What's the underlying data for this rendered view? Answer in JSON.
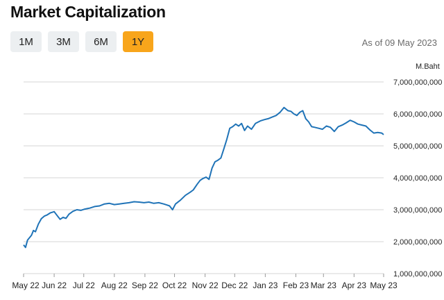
{
  "header": {
    "title": "Market Capitalization",
    "as_of": "As of 09 May 2023"
  },
  "periods": [
    {
      "label": "1M",
      "active": false
    },
    {
      "label": "3M",
      "active": false
    },
    {
      "label": "6M",
      "active": false
    },
    {
      "label": "1Y",
      "active": true
    }
  ],
  "colors": {
    "line": "#1f73b7",
    "active_button": "#f8a51b",
    "grid": "#d6d6d6"
  },
  "chart_data": {
    "type": "line",
    "title": "",
    "ylabel": "M.Baht",
    "ylim": [
      1000000000,
      7000000000
    ],
    "y_ticks": [
      {
        "value": 7000000000,
        "label": "7,000,000,000"
      },
      {
        "value": 6000000000,
        "label": "6,000,000,000"
      },
      {
        "value": 5000000000,
        "label": "5,000,000,000"
      },
      {
        "value": 4000000000,
        "label": "4,000,000,000"
      },
      {
        "value": 3000000000,
        "label": "3,000,000,000"
      },
      {
        "value": 2000000000,
        "label": "2,000,000,000"
      },
      {
        "value": 1000000000,
        "label": "1,000,000,000"
      }
    ],
    "x_ticks": [
      {
        "date": "2022-05-09",
        "label": "May 22"
      },
      {
        "date": "2022-06-09",
        "label": "Jun 22"
      },
      {
        "date": "2022-07-09",
        "label": "Jul 22"
      },
      {
        "date": "2022-08-09",
        "label": "Aug 22"
      },
      {
        "date": "2022-09-09",
        "label": "Sep 22"
      },
      {
        "date": "2022-10-09",
        "label": "Oct 22"
      },
      {
        "date": "2022-11-09",
        "label": "Nov 22"
      },
      {
        "date": "2022-12-09",
        "label": "Dec 22"
      },
      {
        "date": "2023-01-09",
        "label": "Jan 23"
      },
      {
        "date": "2023-02-09",
        "label": "Feb 23"
      },
      {
        "date": "2023-03-09",
        "label": "Mar 23"
      },
      {
        "date": "2023-04-09",
        "label": "Apr 23"
      },
      {
        "date": "2023-05-09",
        "label": "May 23"
      }
    ],
    "grid": true,
    "series": [
      {
        "values": [
          [
            "2022-05-09",
            1.9
          ],
          [
            "2022-05-11",
            1.82
          ],
          [
            "2022-05-13",
            2.05
          ],
          [
            "2022-05-17",
            2.2
          ],
          [
            "2022-05-19",
            2.35
          ],
          [
            "2022-05-21",
            2.31
          ],
          [
            "2022-05-24",
            2.55
          ],
          [
            "2022-05-27",
            2.72
          ],
          [
            "2022-05-30",
            2.8
          ],
          [
            "2022-06-02",
            2.84
          ],
          [
            "2022-06-05",
            2.9
          ],
          [
            "2022-06-09",
            2.94
          ],
          [
            "2022-06-12",
            2.82
          ],
          [
            "2022-06-15",
            2.7
          ],
          [
            "2022-06-18",
            2.76
          ],
          [
            "2022-06-21",
            2.73
          ],
          [
            "2022-06-24",
            2.86
          ],
          [
            "2022-06-28",
            2.95
          ],
          [
            "2022-07-02",
            3.0
          ],
          [
            "2022-07-06",
            2.98
          ],
          [
            "2022-07-10",
            3.02
          ],
          [
            "2022-07-15",
            3.05
          ],
          [
            "2022-07-20",
            3.1
          ],
          [
            "2022-07-25",
            3.12
          ],
          [
            "2022-07-30",
            3.18
          ],
          [
            "2022-08-04",
            3.2
          ],
          [
            "2022-08-09",
            3.16
          ],
          [
            "2022-08-14",
            3.18
          ],
          [
            "2022-08-19",
            3.2
          ],
          [
            "2022-08-24",
            3.22
          ],
          [
            "2022-08-29",
            3.25
          ],
          [
            "2022-09-03",
            3.24
          ],
          [
            "2022-09-08",
            3.22
          ],
          [
            "2022-09-13",
            3.24
          ],
          [
            "2022-09-18",
            3.2
          ],
          [
            "2022-09-23",
            3.22
          ],
          [
            "2022-09-28",
            3.18
          ],
          [
            "2022-10-01",
            3.15
          ],
          [
            "2022-10-04",
            3.12
          ],
          [
            "2022-10-07",
            3.0
          ],
          [
            "2022-10-10",
            3.18
          ],
          [
            "2022-10-15",
            3.3
          ],
          [
            "2022-10-20",
            3.45
          ],
          [
            "2022-10-25",
            3.55
          ],
          [
            "2022-10-28",
            3.62
          ],
          [
            "2022-11-01",
            3.8
          ],
          [
            "2022-11-04",
            3.92
          ],
          [
            "2022-11-07",
            3.98
          ],
          [
            "2022-11-10",
            4.02
          ],
          [
            "2022-11-13",
            3.95
          ],
          [
            "2022-11-16",
            4.3
          ],
          [
            "2022-11-19",
            4.5
          ],
          [
            "2022-11-22",
            4.55
          ],
          [
            "2022-11-25",
            4.62
          ],
          [
            "2022-11-28",
            4.9
          ],
          [
            "2022-12-01",
            5.2
          ],
          [
            "2022-12-04",
            5.55
          ],
          [
            "2022-12-07",
            5.6
          ],
          [
            "2022-12-10",
            5.68
          ],
          [
            "2022-12-13",
            5.62
          ],
          [
            "2022-12-16",
            5.7
          ],
          [
            "2022-12-19",
            5.48
          ],
          [
            "2022-12-22",
            5.62
          ],
          [
            "2022-12-26",
            5.52
          ],
          [
            "2022-12-30",
            5.7
          ],
          [
            "2023-01-04",
            5.78
          ],
          [
            "2023-01-08",
            5.82
          ],
          [
            "2023-01-12",
            5.85
          ],
          [
            "2023-01-16",
            5.9
          ],
          [
            "2023-01-20",
            5.95
          ],
          [
            "2023-01-24",
            6.05
          ],
          [
            "2023-01-28",
            6.2
          ],
          [
            "2023-02-01",
            6.1
          ],
          [
            "2023-02-04",
            6.08
          ],
          [
            "2023-02-07",
            6.0
          ],
          [
            "2023-02-10",
            5.95
          ],
          [
            "2023-02-13",
            6.05
          ],
          [
            "2023-02-16",
            6.1
          ],
          [
            "2023-02-19",
            5.85
          ],
          [
            "2023-02-22",
            5.75
          ],
          [
            "2023-02-25",
            5.6
          ],
          [
            "2023-02-28",
            5.58
          ],
          [
            "2023-03-04",
            5.55
          ],
          [
            "2023-03-08",
            5.52
          ],
          [
            "2023-03-12",
            5.62
          ],
          [
            "2023-03-16",
            5.58
          ],
          [
            "2023-03-20",
            5.45
          ],
          [
            "2023-03-24",
            5.6
          ],
          [
            "2023-03-28",
            5.65
          ],
          [
            "2023-04-01",
            5.72
          ],
          [
            "2023-04-05",
            5.8
          ],
          [
            "2023-04-09",
            5.75
          ],
          [
            "2023-04-13",
            5.68
          ],
          [
            "2023-04-17",
            5.65
          ],
          [
            "2023-04-21",
            5.62
          ],
          [
            "2023-04-25",
            5.5
          ],
          [
            "2023-04-29",
            5.4
          ],
          [
            "2023-05-03",
            5.42
          ],
          [
            "2023-05-07",
            5.4
          ],
          [
            "2023-05-09",
            5.35
          ]
        ]
      }
    ]
  }
}
